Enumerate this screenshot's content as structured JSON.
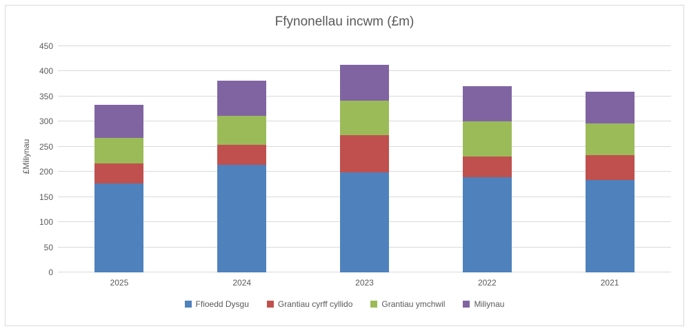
{
  "chart_data": {
    "type": "bar",
    "stacked": true,
    "title": "Ffynonellau incwm (£m)",
    "ylabel": "£Miliynau",
    "xlabel": "",
    "categories": [
      "2025",
      "2024",
      "2023",
      "2022",
      "2021"
    ],
    "series": [
      {
        "name": "Ffioedd Dysgu",
        "color": "#4f81bd",
        "values": [
          177,
          214,
          199,
          190,
          184
        ]
      },
      {
        "name": "Grantiau cyrff cyllido",
        "color": "#c0504d",
        "values": [
          40,
          40,
          74,
          41,
          49
        ]
      },
      {
        "name": "Grantiau ymchwil",
        "color": "#9bbb59",
        "values": [
          51,
          57,
          68,
          70,
          64
        ]
      },
      {
        "name": "Miliynau",
        "color": "#8064a2",
        "values": [
          65,
          70,
          72,
          69,
          63
        ]
      }
    ],
    "totals": [
      333,
      381,
      413,
      370,
      360
    ],
    "ylim": [
      0,
      450
    ],
    "ytick_step": 50,
    "yticks": [
      0,
      50,
      100,
      150,
      200,
      250,
      300,
      350,
      400,
      450
    ],
    "grid": true,
    "legend_position": "bottom",
    "gridline_color": "#d9d9d9",
    "border_color": "#d9d9d9",
    "text_color": "#595959"
  }
}
